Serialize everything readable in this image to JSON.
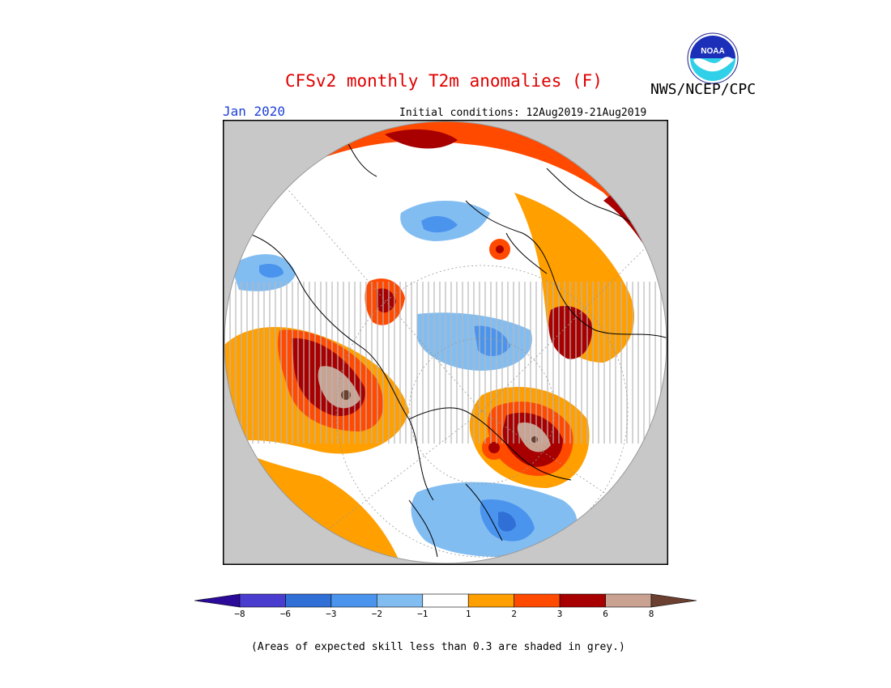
{
  "header": {
    "title": "CFSv2 monthly T2m anomalies (F)",
    "agency": "NWS/NCEP/CPC",
    "month": "Jan 2020",
    "initial_conditions": "Initial conditions: 12Aug2019-21Aug2019"
  },
  "logo": {
    "text": "NOAA",
    "icon": "noaa-logo"
  },
  "legend": {
    "unit": "F",
    "bins": [
      {
        "range": "< -8",
        "color": "#2b0a9a"
      },
      {
        "range": "-8 to -6",
        "color": "#4a3ccf"
      },
      {
        "range": "-6 to -3",
        "color": "#2f6fd6"
      },
      {
        "range": "-3 to -2",
        "color": "#4a94ee"
      },
      {
        "range": "-2 to -1",
        "color": "#82bdf2"
      },
      {
        "range": "-1 to 1",
        "color": "#ffffff"
      },
      {
        "range": "1 to 2",
        "color": "#ff9f00"
      },
      {
        "range": "2 to 3",
        "color": "#ff4a00"
      },
      {
        "range": "3 to 6",
        "color": "#a80000"
      },
      {
        "range": "6 to 8",
        "color": "#c9a291"
      },
      {
        "range": "> 8",
        "color": "#6b4030"
      }
    ],
    "labels": [
      "-8",
      "-6",
      "-3",
      "-2",
      "-1",
      "1",
      "2",
      "3",
      "6",
      "8"
    ]
  },
  "footnote": "(Areas of expected skill less than 0.3 are shaded in grey.)",
  "colors": {
    "title": "#e00000",
    "month": "#1d3fd9",
    "background": "#c8c8c8"
  }
}
